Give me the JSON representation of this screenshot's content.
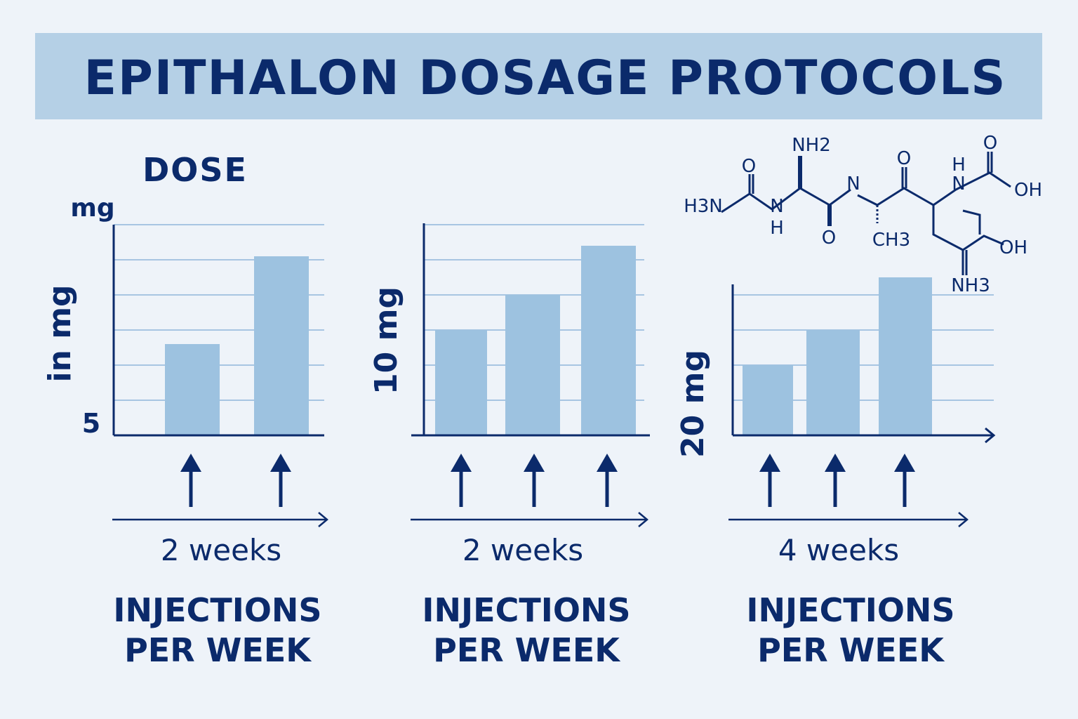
{
  "title": "EPITHALON DOSAGE PROTOCOLS",
  "dose_label": "DOSE",
  "colors": {
    "background": "#eef3f9",
    "title_band": "#b5d0e6",
    "text": "#0b2a6b",
    "bar": "#9dc2e0",
    "grid": "#8fb6da"
  },
  "molecule": {
    "labels": [
      "NH2",
      "O",
      "H3N",
      "N",
      "H",
      "O",
      "N",
      "CH3",
      "O",
      "H",
      "N",
      "O",
      "OH",
      "OH",
      "NH3"
    ]
  },
  "chart_data": [
    {
      "type": "bar",
      "ylabel": "in mg",
      "unit_label": "mg",
      "tick_labels": [
        "5"
      ],
      "values": [
        2.6,
        5.1
      ],
      "ylim": [
        0,
        6
      ],
      "grid": true,
      "xlabel": "2 weeks",
      "footer": [
        "INJECTIONS",
        "PER WEEK"
      ],
      "icons": "arrow-up-icon"
    },
    {
      "type": "bar",
      "ylabel": "10 mg",
      "values": [
        3,
        4,
        5.4
      ],
      "ylim": [
        0,
        6
      ],
      "grid": true,
      "xlabel": "2 weeks",
      "footer": [
        "INJECTIONS",
        "PER WEEK"
      ],
      "icons": "arrow-up-icon"
    },
    {
      "type": "bar",
      "ylabel": "20 mg",
      "values": [
        2,
        3,
        4.5
      ],
      "ylim": [
        0,
        4.3
      ],
      "grid": true,
      "xlabel": "4 weeks",
      "footer": [
        "INJECTIONS",
        "PER WEEK"
      ],
      "icons": "arrow-up-icon"
    }
  ]
}
